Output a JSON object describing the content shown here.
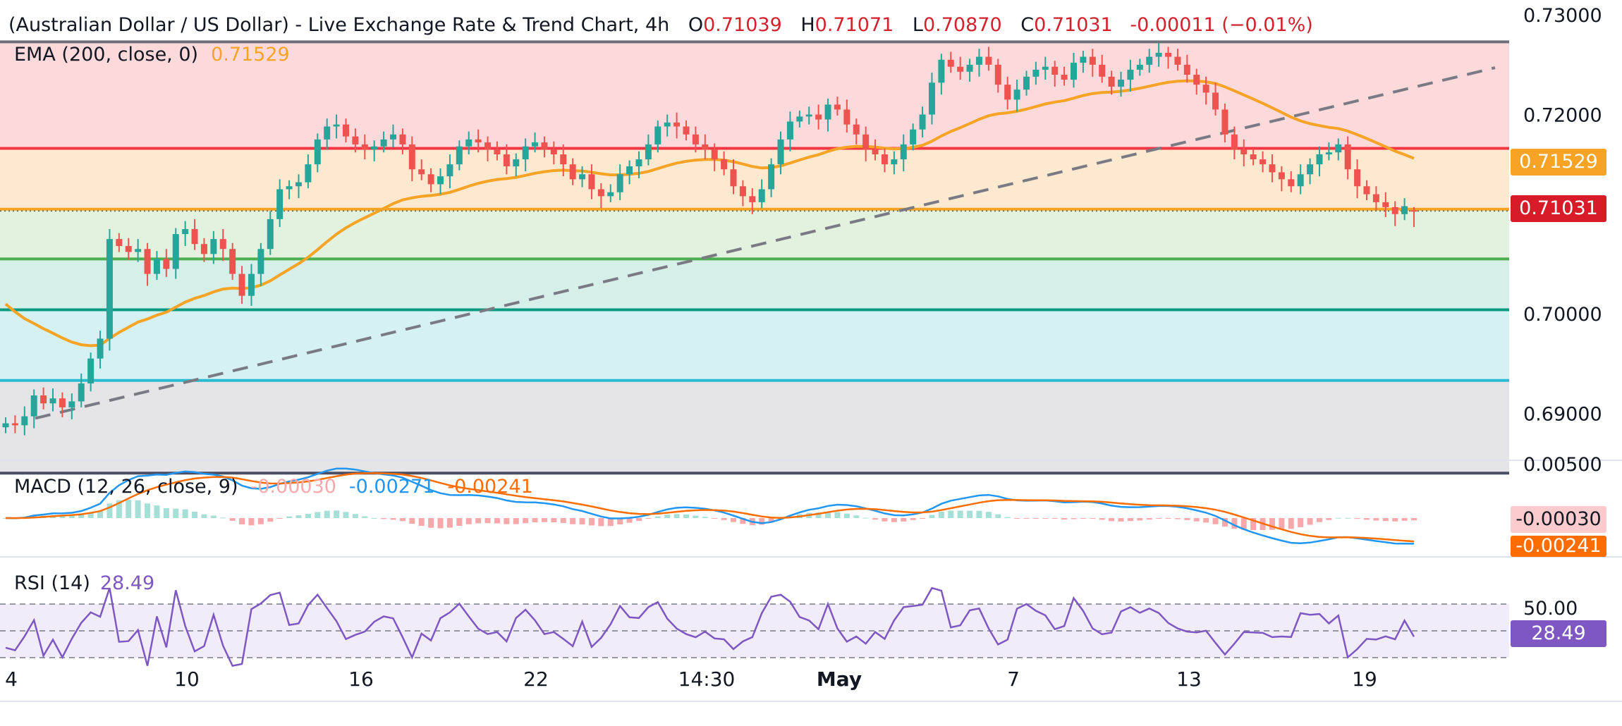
{
  "header": {
    "title": "(Australian Dollar / US Dollar) - Live Exchange Rate & Trend Chart, 4h",
    "open_label": "O",
    "open": "0.71039",
    "high_label": "H",
    "high": "0.71071",
    "low_label": "L",
    "low": "0.70870",
    "close_label": "C",
    "close": "0.71031",
    "change": "-0.00011 (−0.01%)"
  },
  "ema_legend": {
    "label": "EMA (200, close, 0)",
    "value": "0.71529"
  },
  "macd_legend": {
    "label": "MACD (12, 26, close, 9)",
    "hist": "-0.00030",
    "macd": "-0.00271",
    "signal": "-0.00241"
  },
  "rsi_legend": {
    "label": "RSI (14)",
    "value": "28.49"
  },
  "price_tags": {
    "ema": "0.71529",
    "last": "0.71031",
    "macd_hist": "-0.00030",
    "macd_signal": "-0.00241",
    "rsi": "28.49"
  },
  "colors": {
    "up": "#26a69a",
    "down": "#ef5350",
    "ema": "#f7a325",
    "macd": "#2196f3",
    "signal": "#ff6d00",
    "rsi": "#7e57c2",
    "last_tag": "#d81b28",
    "ema_tag": "#f7a325",
    "grid": "#f0f3fa"
  },
  "chart_data": [
    {
      "type": "candlestick",
      "title": "(Australian Dollar / US Dollar) - Live Exchange Rate & Trend Chart, 4h",
      "interval": "4h",
      "x_ticks": [
        "4",
        "10",
        "16",
        "22",
        "14:30",
        "May",
        "7",
        "13",
        "19"
      ],
      "y_ticks": [
        "0.73000",
        "0.72000",
        "0.71529",
        "0.71031",
        "0.70000",
        "0.69000"
      ],
      "ylim": [
        0.6855,
        0.7315
      ],
      "horizontal_levels": [
        0.7273,
        0.7166,
        0.7105,
        0.7055,
        0.7004,
        0.6933,
        0.684
      ],
      "trendline": {
        "from": [
          0.6895,
          "4"
        ],
        "to": [
          0.7247,
          "after 19"
        ]
      },
      "ema_200_last": 0.71529,
      "last_close": 0.71031,
      "ohlc_last": {
        "open": 0.71039,
        "high": 0.71071,
        "low": 0.7087,
        "close": 0.71031
      },
      "close_series": [
        0.689,
        0.6888,
        0.6897,
        0.6918,
        0.691,
        0.6915,
        0.6906,
        0.6912,
        0.693,
        0.6955,
        0.6975,
        0.7075,
        0.7068,
        0.7062,
        0.7065,
        0.704,
        0.7055,
        0.7045,
        0.708,
        0.7085,
        0.707,
        0.706,
        0.7075,
        0.7065,
        0.704,
        0.7018,
        0.704,
        0.7065,
        0.7095,
        0.7125,
        0.7128,
        0.7132,
        0.715,
        0.7175,
        0.7188,
        0.719,
        0.7178,
        0.717,
        0.7165,
        0.7168,
        0.7175,
        0.718,
        0.717,
        0.7145,
        0.714,
        0.713,
        0.7138,
        0.715,
        0.7168,
        0.7175,
        0.7172,
        0.7165,
        0.716,
        0.7148,
        0.7155,
        0.7168,
        0.7172,
        0.7165,
        0.716,
        0.715,
        0.7135,
        0.714,
        0.7125,
        0.7118,
        0.7122,
        0.714,
        0.7148,
        0.7155,
        0.717,
        0.7188,
        0.7192,
        0.7188,
        0.718,
        0.717,
        0.7165,
        0.7155,
        0.7145,
        0.7128,
        0.7118,
        0.7112,
        0.7125,
        0.715,
        0.7175,
        0.7193,
        0.7198,
        0.72,
        0.7195,
        0.721,
        0.7205,
        0.719,
        0.718,
        0.7165,
        0.716,
        0.715,
        0.7155,
        0.717,
        0.7185,
        0.72,
        0.7232,
        0.7255,
        0.7248,
        0.7243,
        0.725,
        0.7258,
        0.725,
        0.723,
        0.7215,
        0.7225,
        0.7238,
        0.7245,
        0.7248,
        0.724,
        0.7235,
        0.7252,
        0.7258,
        0.725,
        0.7238,
        0.7228,
        0.7235,
        0.7245,
        0.725,
        0.7258,
        0.7262,
        0.7258,
        0.725,
        0.724,
        0.723,
        0.7222,
        0.7205,
        0.718,
        0.7165,
        0.716,
        0.7155,
        0.715,
        0.7142,
        0.7135,
        0.7128,
        0.714,
        0.715,
        0.716,
        0.7162,
        0.717,
        0.7145,
        0.7128,
        0.712,
        0.7112,
        0.7107,
        0.71,
        0.7108,
        0.7103
      ]
    },
    {
      "type": "line",
      "name": "MACD (12, 26, close, 9)",
      "y_ticks": [
        "0.00500",
        "-0.00030",
        "-0.00241"
      ],
      "hist": -0.0003,
      "macd": -0.00271,
      "signal": -0.00241
    },
    {
      "type": "line",
      "name": "RSI (14)",
      "y_ticks": [
        "50.00",
        "28.49"
      ],
      "ylim": [
        0,
        100
      ],
      "bands": [
        30,
        50,
        70
      ],
      "last": 28.49
    }
  ]
}
